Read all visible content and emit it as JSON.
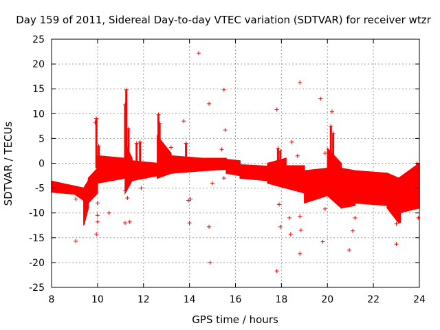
{
  "chart_data": {
    "type": "scatter",
    "title": "Day 159 of 2011, Sidereal Day-to-day VTEC variation (SDTVAR) for receiver wtzr",
    "xlabel": "GPS time / hours",
    "ylabel": "SDTVAR / TECUs",
    "xlim": [
      8,
      24
    ],
    "ylim": [
      -25,
      25
    ],
    "xticks": [
      "8",
      "10",
      "12",
      "14",
      "16",
      "18",
      "20",
      "22",
      "24"
    ],
    "yticks": [
      "25",
      "20",
      "15",
      "10",
      "5",
      "0",
      "-5",
      "-10",
      "-15",
      "-20",
      "-25"
    ],
    "grid": true,
    "marker": "+",
    "series_color": "#ff0000",
    "bands": [
      {
        "x": [
          8.0,
          9.0
        ],
        "low": [
          -5.8,
          -6.2
        ],
        "high": [
          -3.6,
          -4.6
        ]
      },
      {
        "x": [
          9.0,
          9.4
        ],
        "low": [
          -6.2,
          -7.5
        ],
        "high": [
          -4.6,
          -5.0
        ]
      },
      {
        "x": [
          9.4,
          9.6
        ],
        "low": [
          -12.5,
          -9.0
        ],
        "high": [
          -5.0,
          -3.5
        ]
      },
      {
        "x": [
          9.6,
          10.0
        ],
        "low": [
          -8.0,
          -6.0
        ],
        "high": [
          -3.0,
          -1.0
        ]
      },
      {
        "x": [
          10.0,
          11.2
        ],
        "low": [
          -4.0,
          -3.0
        ],
        "high": [
          1.5,
          1.0
        ]
      },
      {
        "x": [
          11.2,
          11.5
        ],
        "low": [
          -6.0,
          -3.5
        ],
        "high": [
          4.0,
          1.0
        ]
      },
      {
        "x": [
          11.5,
          12.6
        ],
        "low": [
          -3.5,
          -2.5
        ],
        "high": [
          0.5,
          0.0
        ]
      },
      {
        "x": [
          12.6,
          13.2
        ],
        "low": [
          -3.0,
          -2.0
        ],
        "high": [
          5.5,
          2.0
        ]
      },
      {
        "x": [
          13.2,
          14.6
        ],
        "low": [
          -2.0,
          -1.5
        ],
        "high": [
          1.5,
          1.0
        ]
      },
      {
        "x": [
          14.6,
          15.6
        ],
        "low": [
          -1.5,
          -1.2
        ],
        "high": [
          1.0,
          1.0
        ]
      },
      {
        "x": [
          15.6,
          16.2
        ],
        "low": [
          -2.0,
          -2.5
        ],
        "high": [
          0.8,
          0.5
        ]
      },
      {
        "x": [
          16.2,
          17.4
        ],
        "low": [
          -3.0,
          -3.5
        ],
        "high": [
          -0.3,
          -0.6
        ]
      },
      {
        "x": [
          17.4,
          18.2
        ],
        "low": [
          -4.0,
          -5.0
        ],
        "high": [
          0.0,
          1.0
        ]
      },
      {
        "x": [
          18.2,
          19.0
        ],
        "low": [
          -5.0,
          -6.0
        ],
        "high": [
          -0.5,
          -0.5
        ]
      },
      {
        "x": [
          19.0,
          20.0
        ],
        "low": [
          -8.0,
          -6.5
        ],
        "high": [
          -1.5,
          -1.0
        ]
      },
      {
        "x": [
          20.0,
          20.6
        ],
        "low": [
          -6.5,
          -9.0
        ],
        "high": [
          3.0,
          0.0
        ]
      },
      {
        "x": [
          20.6,
          21.2
        ],
        "low": [
          -9.0,
          -8.5
        ],
        "high": [
          -1.0,
          -1.5
        ]
      },
      {
        "x": [
          21.2,
          22.6
        ],
        "low": [
          -8.0,
          -8.5
        ],
        "high": [
          -1.5,
          -2.0
        ]
      },
      {
        "x": [
          22.6,
          23.1
        ],
        "low": [
          -9.0,
          -12.0
        ],
        "high": [
          -2.0,
          -3.0
        ]
      },
      {
        "x": [
          23.1,
          24.0
        ],
        "low": [
          -10.0,
          -9.0
        ],
        "high": [
          -3.0,
          0.0
        ]
      }
    ],
    "spikes": [
      {
        "x": 9.95,
        "y_from": -1.0,
        "y_to": 9.0
      },
      {
        "x": 10.05,
        "y_from": 0.0,
        "y_to": 3.5
      },
      {
        "x": 11.2,
        "y_from": -1.0,
        "y_to": 11.8
      },
      {
        "x": 11.25,
        "y_from": -1.0,
        "y_to": 14.8
      },
      {
        "x": 11.35,
        "y_from": -1.0,
        "y_to": 7.0
      },
      {
        "x": 11.7,
        "y_from": -1.0,
        "y_to": 4.0
      },
      {
        "x": 11.85,
        "y_from": -1.0,
        "y_to": 4.3
      },
      {
        "x": 12.65,
        "y_from": 0.0,
        "y_to": 9.8
      },
      {
        "x": 12.7,
        "y_from": 0.0,
        "y_to": 8.0
      },
      {
        "x": 13.85,
        "y_from": -1.0,
        "y_to": 4.0
      },
      {
        "x": 17.85,
        "y_from": -1.0,
        "y_to": 3.0
      },
      {
        "x": 17.95,
        "y_from": -1.0,
        "y_to": 2.5
      },
      {
        "x": 20.15,
        "y_from": -1.0,
        "y_to": 7.5
      },
      {
        "x": 20.25,
        "y_from": -1.0,
        "y_to": 6.0
      },
      {
        "x": 23.15,
        "y_from": -12.0,
        "y_to": -10.0
      },
      {
        "x": 23.9,
        "y_from": -4.0,
        "y_to": 0.0
      }
    ],
    "outliers": [
      [
        9.05,
        -7.2
      ],
      [
        9.05,
        -15.7
      ],
      [
        9.9,
        8.2
      ],
      [
        10.0,
        -10.5
      ],
      [
        10.0,
        -11.8
      ],
      [
        9.95,
        -14.3
      ],
      [
        10.5,
        -10.0
      ],
      [
        10.0,
        -8.0
      ],
      [
        11.2,
        -12.0
      ],
      [
        11.4,
        -11.8
      ],
      [
        11.3,
        -7.0
      ],
      [
        11.2,
        -5.5
      ],
      [
        11.9,
        -5.0
      ],
      [
        12.1,
        -2.8
      ],
      [
        13.2,
        3.2
      ],
      [
        13.75,
        8.5
      ],
      [
        13.95,
        -7.5
      ],
      [
        14.05,
        -7.2
      ],
      [
        14.0,
        -12.0
      ],
      [
        14.4,
        22.2
      ],
      [
        14.85,
        12.0
      ],
      [
        14.85,
        -12.8
      ],
      [
        14.9,
        -20.0
      ],
      [
        15.0,
        -4.0
      ],
      [
        15.4,
        2.8
      ],
      [
        15.5,
        14.8
      ],
      [
        15.55,
        6.7
      ],
      [
        15.5,
        -3.0
      ],
      [
        17.8,
        10.8
      ],
      [
        17.8,
        -21.7
      ],
      [
        17.9,
        -8.3
      ],
      [
        17.95,
        -12.8
      ],
      [
        18.45,
        4.3
      ],
      [
        18.35,
        -11.0
      ],
      [
        18.4,
        -14.3
      ],
      [
        18.4,
        -3.5
      ],
      [
        18.8,
        16.3
      ],
      [
        18.8,
        -10.7
      ],
      [
        18.85,
        -13.5
      ],
      [
        18.8,
        -18.2
      ],
      [
        18.7,
        1.5
      ],
      [
        18.9,
        -5.0
      ],
      [
        19.7,
        13.0
      ],
      [
        19.8,
        -15.8
      ],
      [
        19.9,
        -9.2
      ],
      [
        20.2,
        10.4
      ],
      [
        19.9,
        2.0
      ],
      [
        20.95,
        -17.5
      ],
      [
        21.1,
        -13.6
      ],
      [
        21.2,
        -11.0
      ],
      [
        23.0,
        -16.3
      ],
      [
        23.0,
        -12.2
      ],
      [
        23.6,
        -3.5
      ],
      [
        23.95,
        -11.0
      ]
    ]
  }
}
